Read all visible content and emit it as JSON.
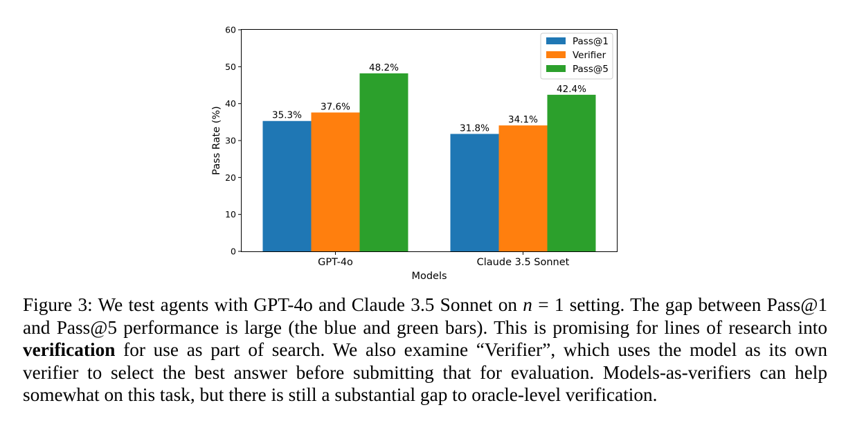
{
  "chart_data": {
    "type": "bar",
    "categories": [
      "GPT-4o",
      "Claude 3.5 Sonnet"
    ],
    "series": [
      {
        "name": "Pass@1",
        "values": [
          35.3,
          31.8
        ],
        "labels": [
          "35.3%",
          "31.8%"
        ],
        "color": "#1f77b4"
      },
      {
        "name": "Verifier",
        "values": [
          37.6,
          34.1
        ],
        "labels": [
          "37.6%",
          "34.1%"
        ],
        "color": "#ff7f0e"
      },
      {
        "name": "Pass@5",
        "values": [
          48.2,
          42.4
        ],
        "labels": [
          "48.2%",
          "42.4%"
        ],
        "color": "#2ca02c"
      }
    ],
    "xlabel": "Models",
    "ylabel": "Pass Rate (%)",
    "ylim": [
      0,
      60
    ],
    "yticks": [
      0,
      10,
      20,
      30,
      40,
      50,
      60
    ],
    "grid": false,
    "legend_position": "top-right"
  },
  "caption": {
    "figure_label": "Figure 3:",
    "part1": "We test agents with GPT-4o and Claude 3.5 Sonnet on",
    "math_var": "n",
    "math_rest": " = 1",
    "part2": "setting. The gap between Pass@1 and Pass@5 performance is large (the blue and green bars). This is promising for lines of research into",
    "bold_word": "verification",
    "part3": "for use as part of search. We also examine “Verifier”, which uses the model as its own verifier to select the best answer before submitting that for evaluation. Models-as-verifiers can help somewhat on this task, but there is still a substantial gap to oracle-level verification."
  }
}
